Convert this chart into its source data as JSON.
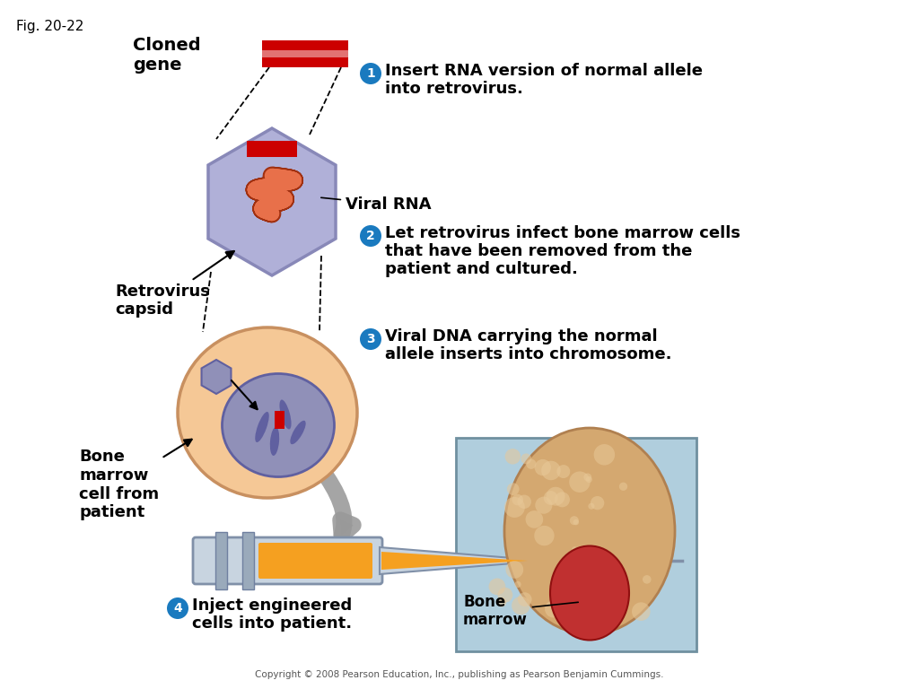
{
  "fig_label": "Fig. 20-22",
  "bg_color": "#ffffff",
  "label_cloned_gene": "Cloned\ngene",
  "label_viral_rna": "Viral RNA",
  "label_retrovirus": "Retrovirus\ncapsid",
  "label_bone_marrow_cell": "Bone\nmarrow\ncell from\npatient",
  "label_bone_marrow": "Bone\nmarrow",
  "copyright": "Copyright © 2008 Pearson Education, Inc., publishing as Pearson Benjamin Cummings.",
  "cloned_gene_color": "#cc0000",
  "hexagon_fill": "#b0b0d8",
  "hexagon_edge": "#8888b8",
  "rna_color": "#e8704a",
  "rna_insert_color": "#cc0000",
  "cell_body_color": "#f5c896",
  "cell_edge_color": "#c89060",
  "nucleus_color": "#9090b8",
  "nucleus_edge": "#6060a0",
  "chromosome_color": "#6060a0",
  "small_virus_color": "#9090b8",
  "arrow_color": "#999999",
  "circle_step_color": "#1a7abf",
  "text_color": "#000000",
  "step1_line1": "Insert RNA version of normal allele",
  "step1_line2": "into retrovirus.",
  "step2_line1": "Let retrovirus infect bone marrow cells",
  "step2_line2": "that have been removed from the",
  "step2_line3": "patient and cultured.",
  "step3_line1": "Viral DNA carrying the normal",
  "step3_line2": "allele inserts into chromosome.",
  "step4_line1": "Inject engineered",
  "step4_line2": "cells into patient."
}
